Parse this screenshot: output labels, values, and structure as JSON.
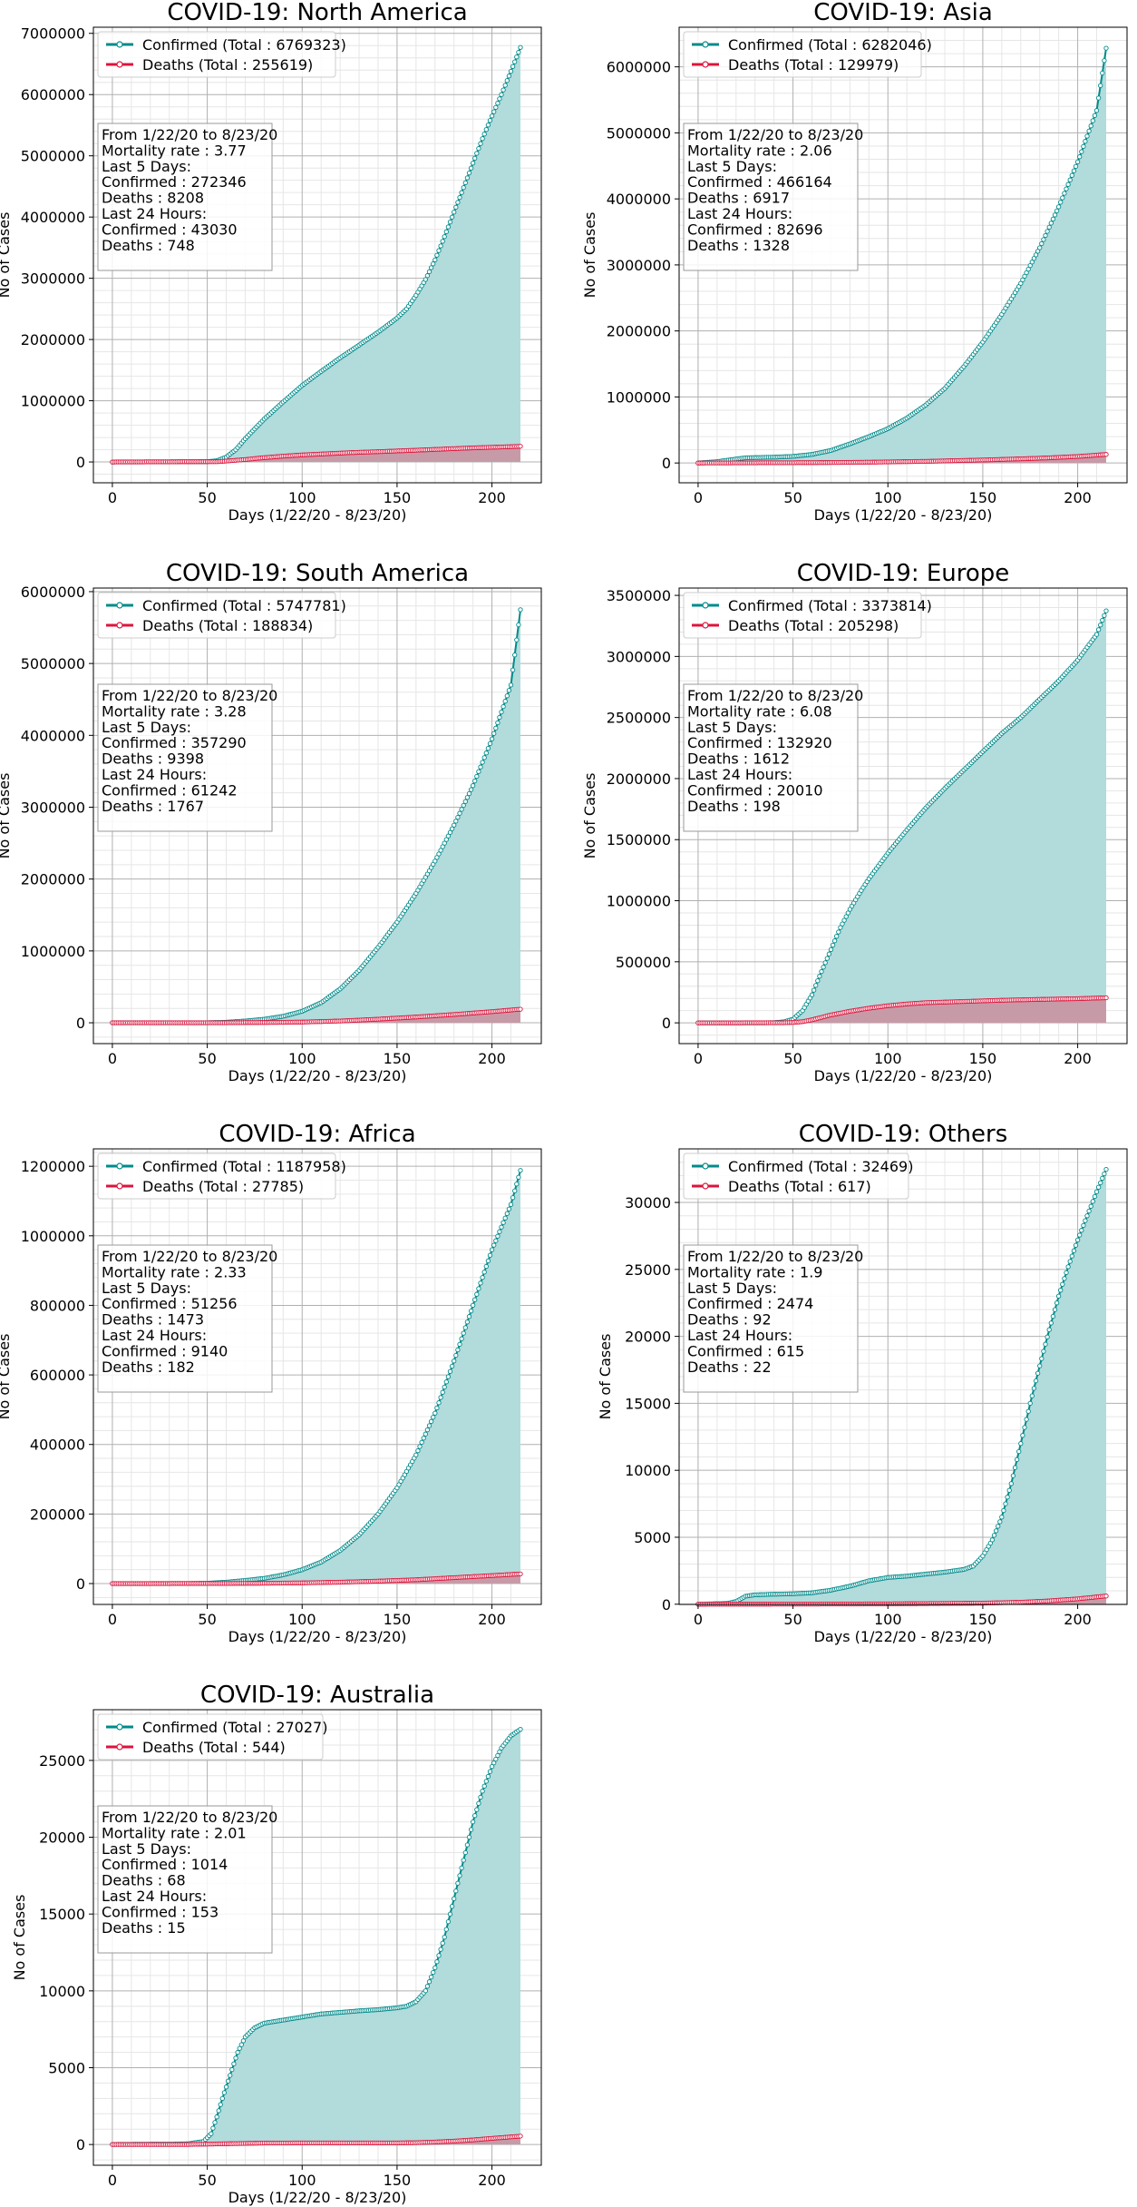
{
  "x_axis": {
    "xlabel": "Days (1/22/20 - 8/23/20)",
    "xlim": [
      -10,
      226
    ],
    "xticks": [
      0,
      50,
      100,
      150,
      200
    ]
  },
  "ylabel": "No of Cases",
  "colors": {
    "confirmed_line": "#008b8b",
    "confirmed_fill": "#b2dbdb",
    "deaths_line": "#dc143c",
    "deaths_fill": "#c79aa7",
    "marker_face": "#ffffff"
  },
  "charts": [
    {
      "id": "north-america",
      "title": "COVID-19: North America",
      "legend": [
        "Confirmed (Total : 6769323)",
        "Deaths (Total : 255619)"
      ],
      "stats": [
        "From 1/22/20 to 8/23/20",
        "Mortality rate : 3.77",
        "Last 5 Days:",
        "Confirmed : 272346",
        "Deaths : 8208",
        "Last 24 Hours:",
        "Confirmed : 43030",
        "Deaths : 748"
      ],
      "ylim": [
        -340000,
        7100000
      ],
      "yticks": [
        0,
        1000000,
        2000000,
        3000000,
        4000000,
        5000000,
        6000000,
        7000000
      ],
      "ytick_labels": [
        "0",
        "1000000",
        "2000000",
        "3000000",
        "4000000",
        "5000000",
        "6000000",
        "7000000"
      ],
      "confirmed": [
        [
          0,
          0
        ],
        [
          50,
          5000
        ],
        [
          55,
          20000
        ],
        [
          60,
          80000
        ],
        [
          65,
          200000
        ],
        [
          70,
          380000
        ],
        [
          80,
          700000
        ],
        [
          90,
          980000
        ],
        [
          100,
          1250000
        ],
        [
          110,
          1480000
        ],
        [
          120,
          1700000
        ],
        [
          130,
          1910000
        ],
        [
          140,
          2120000
        ],
        [
          150,
          2350000
        ],
        [
          155,
          2500000
        ],
        [
          160,
          2720000
        ],
        [
          165,
          2980000
        ],
        [
          170,
          3300000
        ],
        [
          175,
          3680000
        ],
        [
          180,
          4080000
        ],
        [
          185,
          4480000
        ],
        [
          190,
          4880000
        ],
        [
          195,
          5280000
        ],
        [
          200,
          5650000
        ],
        [
          205,
          6000000
        ],
        [
          210,
          6380000
        ],
        [
          215,
          6769323
        ]
      ],
      "deaths": [
        [
          0,
          0
        ],
        [
          55,
          5000
        ],
        [
          60,
          15000
        ],
        [
          70,
          40000
        ],
        [
          80,
          70000
        ],
        [
          90,
          95000
        ],
        [
          100,
          115000
        ],
        [
          110,
          130000
        ],
        [
          120,
          145000
        ],
        [
          130,
          158000
        ],
        [
          140,
          168000
        ],
        [
          150,
          180000
        ],
        [
          160,
          192000
        ],
        [
          170,
          205000
        ],
        [
          180,
          218000
        ],
        [
          190,
          230000
        ],
        [
          200,
          240000
        ],
        [
          210,
          250000
        ],
        [
          215,
          255619
        ]
      ]
    },
    {
      "id": "asia",
      "title": "COVID-19: Asia",
      "legend": [
        "Confirmed (Total : 6282046)",
        "Deaths (Total : 129979)"
      ],
      "stats": [
        "From 1/22/20 to 8/23/20",
        "Mortality rate : 2.06",
        "Last 5 Days:",
        "Confirmed : 466164",
        "Deaths : 6917",
        "Last 24 Hours:",
        "Confirmed : 82696",
        "Deaths : 1328"
      ],
      "ylim": [
        -300000,
        6600000
      ],
      "yticks": [
        0,
        1000000,
        2000000,
        3000000,
        4000000,
        5000000,
        6000000
      ],
      "ytick_labels": [
        "0",
        "1000000",
        "2000000",
        "3000000",
        "4000000",
        "5000000",
        "6000000"
      ],
      "confirmed": [
        [
          0,
          500
        ],
        [
          10,
          20000
        ],
        [
          20,
          60000
        ],
        [
          25,
          78000
        ],
        [
          30,
          82000
        ],
        [
          40,
          88000
        ],
        [
          50,
          100000
        ],
        [
          60,
          130000
        ],
        [
          70,
          190000
        ],
        [
          80,
          290000
        ],
        [
          90,
          400000
        ],
        [
          100,
          520000
        ],
        [
          110,
          680000
        ],
        [
          120,
          880000
        ],
        [
          130,
          1130000
        ],
        [
          140,
          1460000
        ],
        [
          150,
          1830000
        ],
        [
          160,
          2250000
        ],
        [
          170,
          2720000
        ],
        [
          180,
          3260000
        ],
        [
          190,
          3880000
        ],
        [
          200,
          4560000
        ],
        [
          210,
          5340000
        ],
        [
          215,
          6282046
        ]
      ],
      "deaths": [
        [
          0,
          0
        ],
        [
          30,
          3000
        ],
        [
          60,
          5000
        ],
        [
          90,
          12000
        ],
        [
          120,
          25000
        ],
        [
          150,
          45000
        ],
        [
          180,
          72000
        ],
        [
          200,
          98000
        ],
        [
          215,
          129979
        ]
      ]
    },
    {
      "id": "south-america",
      "title": "COVID-19: South America",
      "legend": [
        "Confirmed (Total : 5747781)",
        "Deaths (Total : 188834)"
      ],
      "stats": [
        "From 1/22/20 to 8/23/20",
        "Mortality rate : 3.28",
        "Last 5 Days:",
        "Confirmed : 357290",
        "Deaths : 9398",
        "Last 24 Hours:",
        "Confirmed : 61242",
        "Deaths : 1767"
      ],
      "ylim": [
        -290000,
        6050000
      ],
      "yticks": [
        0,
        1000000,
        2000000,
        3000000,
        4000000,
        5000000,
        6000000
      ],
      "ytick_labels": [
        "0",
        "1000000",
        "2000000",
        "3000000",
        "4000000",
        "5000000",
        "6000000"
      ],
      "confirmed": [
        [
          0,
          0
        ],
        [
          50,
          1000
        ],
        [
          60,
          8000
        ],
        [
          70,
          25000
        ],
        [
          80,
          50000
        ],
        [
          90,
          90000
        ],
        [
          100,
          160000
        ],
        [
          110,
          280000
        ],
        [
          120,
          470000
        ],
        [
          130,
          730000
        ],
        [
          140,
          1050000
        ],
        [
          150,
          1400000
        ],
        [
          160,
          1800000
        ],
        [
          170,
          2250000
        ],
        [
          180,
          2750000
        ],
        [
          190,
          3300000
        ],
        [
          200,
          3950000
        ],
        [
          210,
          4700000
        ],
        [
          215,
          5747781
        ]
      ],
      "deaths": [
        [
          0,
          0
        ],
        [
          60,
          1000
        ],
        [
          80,
          4000
        ],
        [
          100,
          10000
        ],
        [
          120,
          25000
        ],
        [
          140,
          50000
        ],
        [
          160,
          80000
        ],
        [
          180,
          115000
        ],
        [
          200,
          155000
        ],
        [
          215,
          188834
        ]
      ]
    },
    {
      "id": "europe",
      "title": "COVID-19: Europe",
      "legend": [
        "Confirmed (Total : 3373814)",
        "Deaths (Total : 205298)"
      ],
      "stats": [
        "From 1/22/20 to 8/23/20",
        "Mortality rate : 6.08",
        "Last 5 Days:",
        "Confirmed : 132920",
        "Deaths : 1612",
        "Last 24 Hours:",
        "Confirmed : 20010",
        "Deaths : 198"
      ],
      "ylim": [
        -170000,
        3560000
      ],
      "yticks": [
        0,
        500000,
        1000000,
        1500000,
        2000000,
        2500000,
        3000000,
        3500000
      ],
      "ytick_labels": [
        "0",
        "500000",
        "1000000",
        "1500000",
        "2000000",
        "2500000",
        "3000000",
        "3500000"
      ],
      "confirmed": [
        [
          0,
          0
        ],
        [
          35,
          200
        ],
        [
          40,
          2000
        ],
        [
          45,
          8000
        ],
        [
          50,
          30000
        ],
        [
          55,
          100000
        ],
        [
          60,
          230000
        ],
        [
          65,
          420000
        ],
        [
          70,
          600000
        ],
        [
          75,
          780000
        ],
        [
          80,
          930000
        ],
        [
          85,
          1060000
        ],
        [
          90,
          1180000
        ],
        [
          100,
          1390000
        ],
        [
          110,
          1580000
        ],
        [
          120,
          1760000
        ],
        [
          130,
          1920000
        ],
        [
          140,
          2070000
        ],
        [
          150,
          2220000
        ],
        [
          160,
          2370000
        ],
        [
          170,
          2500000
        ],
        [
          180,
          2650000
        ],
        [
          190,
          2800000
        ],
        [
          200,
          2970000
        ],
        [
          210,
          3180000
        ],
        [
          215,
          3373814
        ]
      ],
      "deaths": [
        [
          0,
          0
        ],
        [
          45,
          1000
        ],
        [
          50,
          3000
        ],
        [
          55,
          10000
        ],
        [
          60,
          25000
        ],
        [
          65,
          45000
        ],
        [
          70,
          65000
        ],
        [
          80,
          95000
        ],
        [
          90,
          120000
        ],
        [
          100,
          140000
        ],
        [
          110,
          155000
        ],
        [
          120,
          165000
        ],
        [
          140,
          175000
        ],
        [
          160,
          185000
        ],
        [
          180,
          192000
        ],
        [
          200,
          198000
        ],
        [
          215,
          205298
        ]
      ]
    },
    {
      "id": "africa",
      "title": "COVID-19: Africa",
      "legend": [
        "Confirmed (Total : 1187958)",
        "Deaths (Total : 27785)"
      ],
      "stats": [
        "From 1/22/20 to 8/23/20",
        "Mortality rate : 2.33",
        "Last 5 Days:",
        "Confirmed : 51256",
        "Deaths : 1473",
        "Last 24 Hours:",
        "Confirmed : 9140",
        "Deaths : 182"
      ],
      "ylim": [
        -60000,
        1250000
      ],
      "yticks": [
        0,
        200000,
        400000,
        600000,
        800000,
        1000000,
        1200000
      ],
      "ytick_labels": [
        "0",
        "200000",
        "400000",
        "600000",
        "800000",
        "1000000",
        "1200000"
      ],
      "confirmed": [
        [
          0,
          0
        ],
        [
          40,
          300
        ],
        [
          50,
          1000
        ],
        [
          60,
          4000
        ],
        [
          70,
          9000
        ],
        [
          80,
          15000
        ],
        [
          90,
          25000
        ],
        [
          100,
          40000
        ],
        [
          110,
          62000
        ],
        [
          120,
          95000
        ],
        [
          130,
          140000
        ],
        [
          140,
          200000
        ],
        [
          150,
          275000
        ],
        [
          160,
          370000
        ],
        [
          170,
          490000
        ],
        [
          180,
          640000
        ],
        [
          190,
          800000
        ],
        [
          200,
          960000
        ],
        [
          210,
          1090000
        ],
        [
          215,
          1187958
        ]
      ],
      "deaths": [
        [
          0,
          0
        ],
        [
          60,
          300
        ],
        [
          80,
          1000
        ],
        [
          100,
          2000
        ],
        [
          120,
          4000
        ],
        [
          140,
          7000
        ],
        [
          160,
          11000
        ],
        [
          180,
          17000
        ],
        [
          200,
          23000
        ],
        [
          215,
          27785
        ]
      ]
    },
    {
      "id": "others",
      "title": "COVID-19: Others",
      "legend": [
        "Confirmed (Total : 32469)",
        "Deaths (Total : 617)"
      ],
      "stats": [
        "From 1/22/20 to 8/23/20",
        "Mortality rate : 1.9",
        "Last 5 Days:",
        "Confirmed : 2474",
        "Deaths : 92",
        "Last 24 Hours:",
        "Confirmed : 615",
        "Deaths : 22"
      ],
      "ylim": [
        -16.0,
        34000
      ],
      "yticks": [
        0,
        5000,
        10000,
        15000,
        20000,
        25000,
        30000
      ],
      "ytick_labels": [
        "0",
        "5000",
        "10000",
        "15000",
        "20000",
        "25000",
        "30000"
      ],
      "confirmed": [
        [
          0,
          0
        ],
        [
          15,
          60
        ],
        [
          20,
          200
        ],
        [
          25,
          600
        ],
        [
          30,
          700
        ],
        [
          40,
          750
        ],
        [
          50,
          780
        ],
        [
          60,
          850
        ],
        [
          70,
          1050
        ],
        [
          80,
          1350
        ],
        [
          90,
          1750
        ],
        [
          100,
          2000
        ],
        [
          110,
          2100
        ],
        [
          120,
          2250
        ],
        [
          130,
          2400
        ],
        [
          140,
          2600
        ],
        [
          145,
          2850
        ],
        [
          150,
          3600
        ],
        [
          155,
          4800
        ],
        [
          160,
          6500
        ],
        [
          165,
          9000
        ],
        [
          170,
          12000
        ],
        [
          175,
          15000
        ],
        [
          180,
          17800
        ],
        [
          185,
          20500
        ],
        [
          190,
          23000
        ],
        [
          195,
          25200
        ],
        [
          200,
          27200
        ],
        [
          205,
          29000
        ],
        [
          210,
          30800
        ],
        [
          215,
          32469
        ]
      ],
      "deaths": [
        [
          0,
          0
        ],
        [
          50,
          10
        ],
        [
          100,
          25
        ],
        [
          150,
          80
        ],
        [
          170,
          150
        ],
        [
          185,
          250
        ],
        [
          200,
          400
        ],
        [
          215,
          617
        ]
      ]
    },
    {
      "id": "australia",
      "title": "COVID-19: Australia",
      "legend": [
        "Confirmed (Total : 27027)",
        "Deaths (Total : 544)"
      ],
      "stats": [
        "From 1/22/20 to 8/23/20",
        "Mortality rate : 2.01",
        "Last 5 Days:",
        "Confirmed : 1014",
        "Deaths : 68",
        "Last 24 Hours:",
        "Confirmed : 153",
        "Deaths : 15"
      ],
      "ylim": [
        -1350,
        28300
      ],
      "yticks": [
        0,
        5000,
        10000,
        15000,
        20000,
        25000
      ],
      "ytick_labels": [
        "0",
        "5000",
        "10000",
        "15000",
        "20000",
        "25000"
      ],
      "confirmed": [
        [
          0,
          10
        ],
        [
          30,
          30
        ],
        [
          40,
          50
        ],
        [
          48,
          200
        ],
        [
          52,
          700
        ],
        [
          55,
          1800
        ],
        [
          58,
          3000
        ],
        [
          62,
          4500
        ],
        [
          66,
          6000
        ],
        [
          70,
          7000
        ],
        [
          75,
          7600
        ],
        [
          80,
          7900
        ],
        [
          90,
          8100
        ],
        [
          100,
          8300
        ],
        [
          110,
          8500
        ],
        [
          120,
          8600
        ],
        [
          130,
          8700
        ],
        [
          140,
          8780
        ],
        [
          150,
          8900
        ],
        [
          155,
          9000
        ],
        [
          160,
          9300
        ],
        [
          165,
          10000
        ],
        [
          170,
          11500
        ],
        [
          175,
          13500
        ],
        [
          180,
          16000
        ],
        [
          185,
          18500
        ],
        [
          190,
          21000
        ],
        [
          195,
          23000
        ],
        [
          200,
          24600
        ],
        [
          205,
          25800
        ],
        [
          210,
          26600
        ],
        [
          215,
          27027
        ]
      ],
      "deaths": [
        [
          0,
          0
        ],
        [
          40,
          5
        ],
        [
          60,
          50
        ],
        [
          80,
          95
        ],
        [
          100,
          102
        ],
        [
          150,
          104
        ],
        [
          160,
          120
        ],
        [
          170,
          160
        ],
        [
          180,
          220
        ],
        [
          190,
          300
        ],
        [
          200,
          400
        ],
        [
          215,
          544
        ]
      ]
    }
  ]
}
